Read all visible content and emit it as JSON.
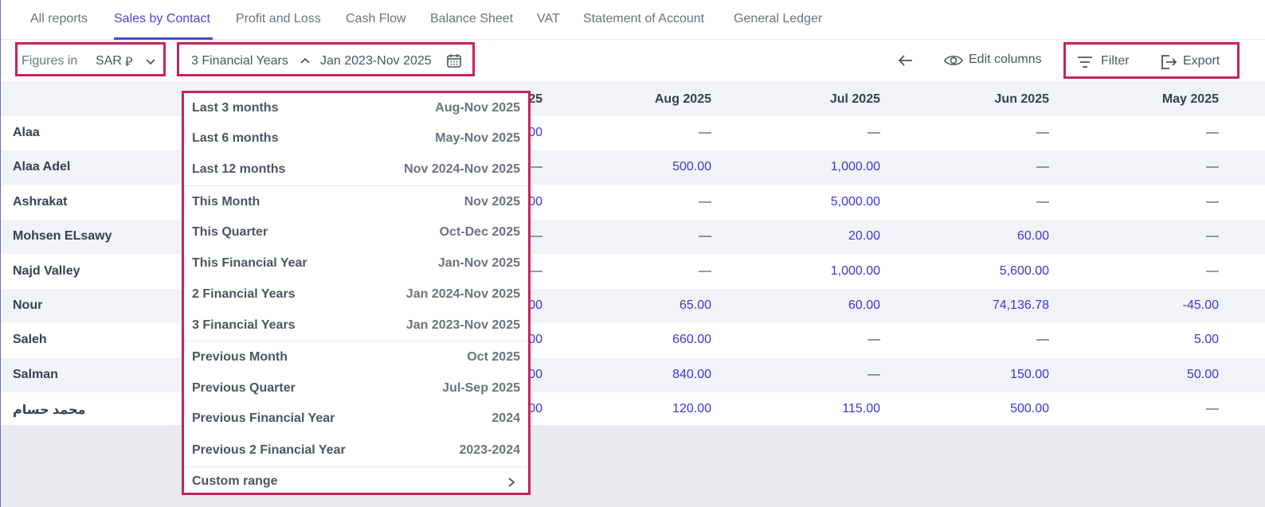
{
  "tabs": [
    "All reports",
    "Sales by Contact",
    "Profit and Loss",
    "Cash Flow",
    "Balance Sheet",
    "VAT",
    "Statement of Account",
    "General Ledger"
  ],
  "active_tab": "Sales by Contact",
  "toolbar": {
    "figures_label": "Figures in",
    "currency": "SAR",
    "currency_symbol": "⃁",
    "period_label": "3 Financial Years",
    "period_range": "Jan 2023-Nov 2025",
    "edit_columns": "Edit columns",
    "filter": "Filter",
    "export": "Export"
  },
  "table": {
    "headers": [
      "25",
      "Aug 2025",
      "Jul 2025",
      "Jun 2025",
      "May 2025"
    ],
    "rows": [
      {
        "name": "Alaa",
        "cells": [
          "00",
          "—",
          "—",
          "—",
          "—"
        ]
      },
      {
        "name": "Alaa Adel",
        "cells": [
          "—",
          "500.00",
          "1,000.00",
          "—",
          "—"
        ]
      },
      {
        "name": "Ashrakat",
        "cells": [
          "00",
          "—",
          "5,000.00",
          "—",
          "—"
        ]
      },
      {
        "name": "Mohsen ELsawy",
        "cells": [
          "—",
          "—",
          "20.00",
          "60.00",
          "—"
        ]
      },
      {
        "name": "Najd Valley",
        "cells": [
          "—",
          "—",
          "1,000.00",
          "5,600.00",
          "—"
        ]
      },
      {
        "name": "Nour",
        "cells": [
          "00",
          "65.00",
          "60.00",
          "74,136.78",
          "-45.00"
        ]
      },
      {
        "name": "Saleh",
        "cells": [
          "00",
          "660.00",
          "—",
          "—",
          "5.00"
        ]
      },
      {
        "name": "Salman",
        "cells": [
          "00",
          "840.00",
          "—",
          "150.00",
          "50.00"
        ]
      },
      {
        "name": "محمد حسام",
        "cells": [
          "00",
          "120.00",
          "115.00",
          "500.00",
          "—"
        ]
      }
    ]
  },
  "dropdown": {
    "options": [
      {
        "label": "Last 3 months",
        "range": "Aug-Nov 2025"
      },
      {
        "label": "Last 6 months",
        "range": "May-Nov 2025"
      },
      {
        "label": "Last 12 months",
        "range": "Nov 2024-Nov 2025"
      },
      {
        "label": "This Month",
        "range": "Nov 2025"
      },
      {
        "label": "This Quarter",
        "range": "Oct-Dec 2025"
      },
      {
        "label": "This Financial Year",
        "range": "Jan-Nov 2025"
      },
      {
        "label": "2 Financial Years",
        "range": "Jan 2024-Nov 2025"
      },
      {
        "label": "3 Financial Years",
        "range": "Jan 2023-Nov 2025"
      },
      {
        "label": "Previous Month",
        "range": "Oct 2025"
      },
      {
        "label": "Previous Quarter",
        "range": "Jul-Sep 2025"
      },
      {
        "label": "Previous Financial Year",
        "range": "2024"
      },
      {
        "label": "Previous 2 Financial Year",
        "range": "2023-2024"
      }
    ],
    "custom_range": "Custom range"
  },
  "colors": {
    "accent": "#4b46d0",
    "highlight": "#c8235a",
    "link_value": "#3d36d6"
  }
}
